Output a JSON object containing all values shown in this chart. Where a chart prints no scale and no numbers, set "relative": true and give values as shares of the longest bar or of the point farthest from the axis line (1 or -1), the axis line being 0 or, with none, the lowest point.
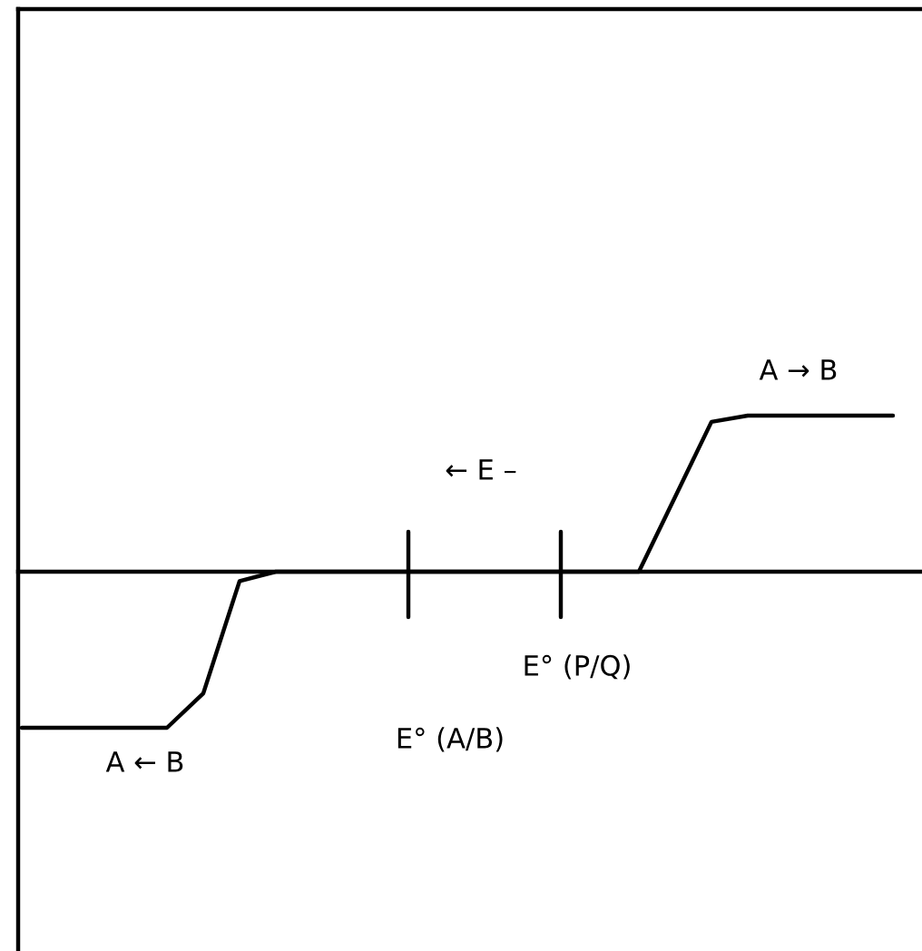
{
  "chart_data": {
    "type": "line",
    "relative": true,
    "color": "#000000",
    "categories": [
      null,
      null,
      null,
      null,
      null,
      null,
      null,
      null,
      null,
      null,
      null,
      null,
      null,
      null,
      null,
      null,
      null,
      null,
      null,
      null,
      null,
      null,
      null,
      null,
      null
    ],
    "values": [
      -1,
      -1,
      -1,
      -1,
      -1,
      -0.78,
      -0.06,
      0,
      0,
      0,
      0,
      0,
      0,
      0,
      0,
      0,
      0,
      0,
      0.48,
      0.96,
      1,
      1,
      1,
      1,
      1
    ],
    "annotations": [
      "A → B",
      "← E –",
      "E° (P/Q)",
      "E° (A/B)",
      "A ← B"
    ],
    "legend": false,
    "marker": "none",
    "line_style": "solid"
  }
}
